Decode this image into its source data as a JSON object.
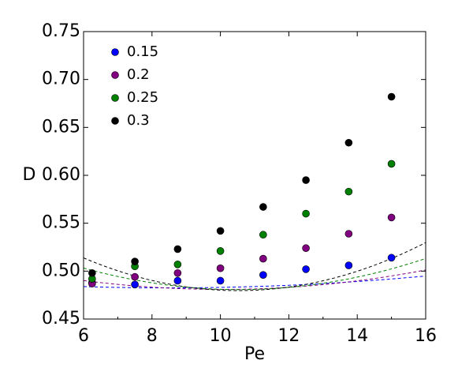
{
  "chart_data": {
    "type": "scatter",
    "xlabel": "Pe",
    "ylabel": "D",
    "xlim": [
      6,
      16
    ],
    "ylim": [
      0.45,
      0.75
    ],
    "xticks": [
      "6",
      "8",
      "10",
      "12",
      "14",
      "16"
    ],
    "yticks": [
      "0.45",
      "0.50",
      "0.55",
      "0.60",
      "0.65",
      "0.70",
      "0.75"
    ],
    "grid": false,
    "legend_position": "top-left",
    "series": [
      {
        "name": "0.15",
        "color": "#0000ff",
        "x": [
          6.25,
          7.5,
          8.75,
          10.0,
          11.25,
          12.5,
          13.75,
          15.0
        ],
        "y": [
          0.488,
          0.486,
          0.49,
          0.49,
          0.496,
          0.502,
          0.506,
          0.514
        ],
        "fit": [
          0.4839,
          -0.0011,
          0.00022
        ]
      },
      {
        "name": "0.2",
        "color": "#800080",
        "x": [
          6.25,
          7.5,
          8.75,
          10.0,
          11.25,
          12.5,
          13.75,
          15.0
        ],
        "y": [
          0.487,
          0.494,
          0.498,
          0.503,
          0.513,
          0.524,
          0.539,
          0.556
        ],
        "fit": [
          0.4902,
          -0.0046,
          0.00057
        ]
      },
      {
        "name": "0.25",
        "color": "#008000",
        "x": [
          6.25,
          7.5,
          8.75,
          10.0,
          11.25,
          12.5,
          13.75,
          15.0
        ],
        "y": [
          0.492,
          0.505,
          0.507,
          0.521,
          0.538,
          0.56,
          0.583,
          0.612
        ],
        "fit": [
          0.5032,
          -0.0099,
          0.00109
        ]
      },
      {
        "name": "0.3",
        "color": "#000000",
        "x": [
          6.25,
          7.5,
          8.75,
          10.0,
          11.25,
          12.5,
          13.75,
          15.0
        ],
        "y": [
          0.498,
          0.51,
          0.523,
          0.542,
          0.567,
          0.595,
          0.634,
          0.682
        ],
        "fit": [
          0.5138,
          -0.0151,
          0.00167
        ]
      }
    ]
  }
}
